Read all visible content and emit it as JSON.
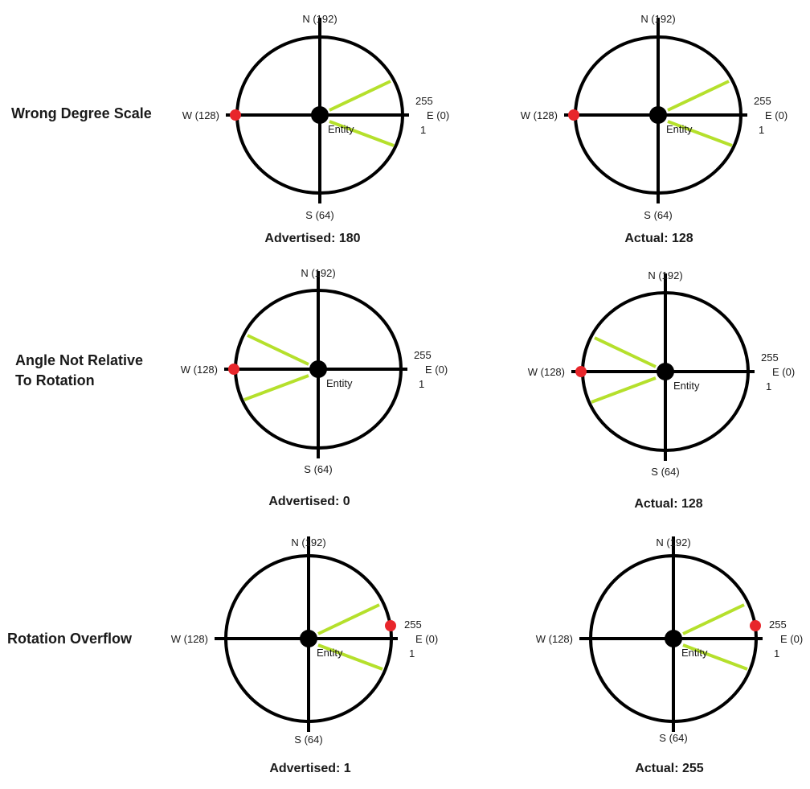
{
  "colors": {
    "stroke": "#000000",
    "marker": "#e8262b",
    "cone": "#b5e02c",
    "background": "#ffffff"
  },
  "rows": [
    {
      "label": [
        "Wrong Degree Scale"
      ]
    },
    {
      "label": [
        "Angle Not Relative",
        "To Rotation"
      ]
    },
    {
      "label": [
        "Rotation Overflow"
      ]
    }
  ],
  "compasses": [
    {
      "north": "N (192)",
      "south": "S (64)",
      "west": "W (128)",
      "east": "E (0)",
      "tick_upper": "255",
      "tick_lower": "1",
      "entity": "Entity",
      "caption": "Advertised: 180",
      "marker_at": "W",
      "cone_direction": "E"
    },
    {
      "north": "N (192)",
      "south": "S (64)",
      "west": "W (128)",
      "east": "E (0)",
      "tick_upper": "255",
      "tick_lower": "1",
      "entity": "Entity",
      "caption": "Actual: 128",
      "marker_at": "W",
      "cone_direction": "E"
    },
    {
      "north": "N (192)",
      "south": "S (64)",
      "west": "W (128)",
      "east": "E (0)",
      "tick_upper": "255",
      "tick_lower": "1",
      "entity": "Entity",
      "caption": "Advertised: 0",
      "marker_at": "W",
      "cone_direction": "W"
    },
    {
      "north": "N (192)",
      "south": "S (64)",
      "west": "W (128)",
      "east": "E (0)",
      "tick_upper": "255",
      "tick_lower": "1",
      "entity": "Entity",
      "caption": "Actual: 128",
      "marker_at": "W",
      "cone_direction": "W"
    },
    {
      "north": "N (192)",
      "south": "S (64)",
      "west": "W (128)",
      "east": "E (0)",
      "tick_upper": "255",
      "tick_lower": "1",
      "entity": "Entity",
      "caption": "Advertised: 1",
      "marker_at": "E-upper",
      "cone_direction": "E"
    },
    {
      "north": "N (192)",
      "south": "S (64)",
      "west": "W (128)",
      "east": "E (0)",
      "tick_upper": "255",
      "tick_lower": "1",
      "entity": "Entity",
      "caption": "Actual: 255",
      "marker_at": "E-upper",
      "cone_direction": "E"
    }
  ]
}
